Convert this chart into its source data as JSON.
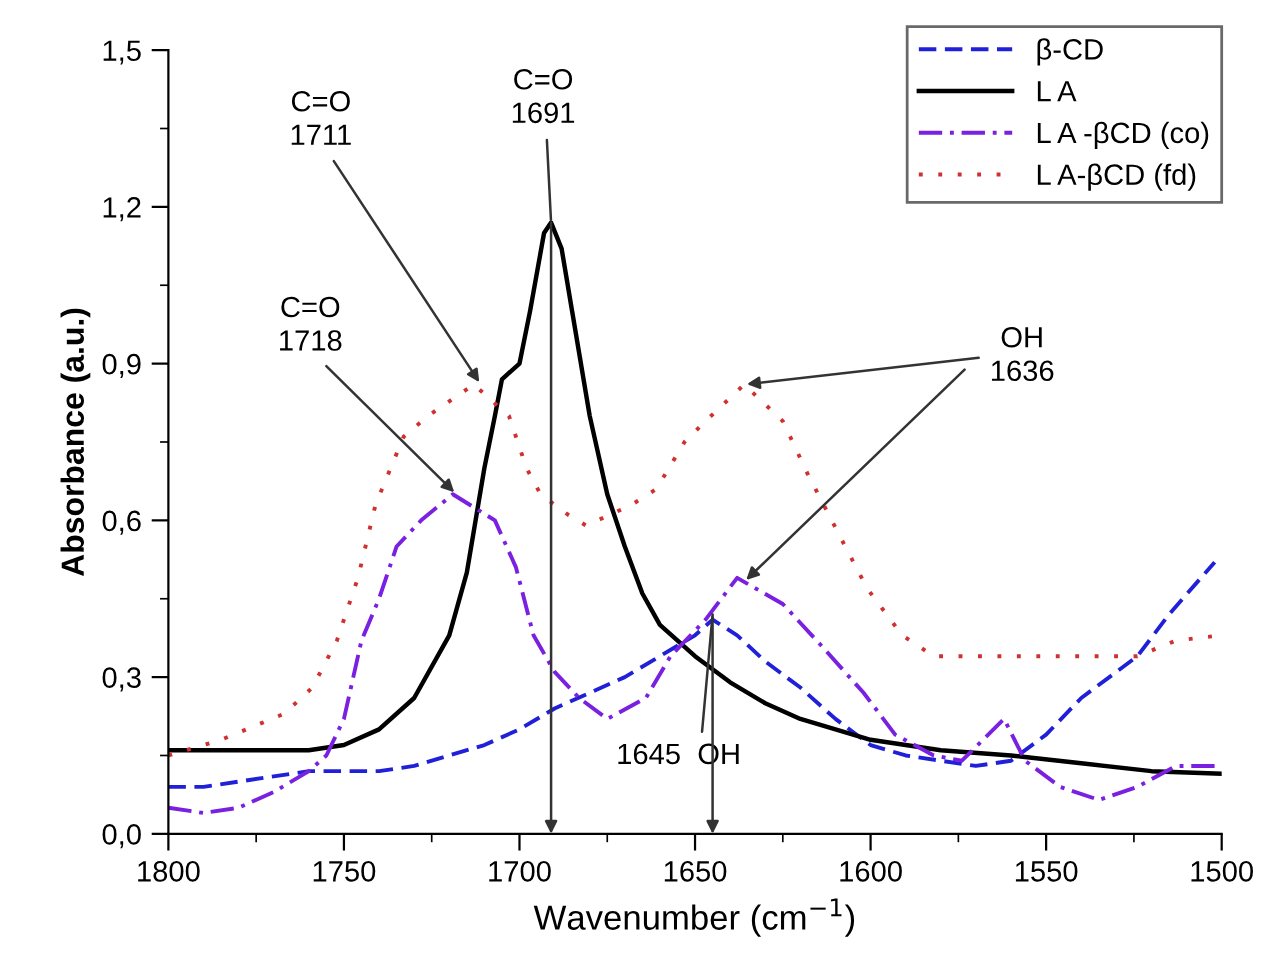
{
  "chart_data": {
    "type": "line",
    "xlabel": "Wavenumber (cm$^{−1}$)",
    "ylabel": "Absorbance (a.u.)",
    "xlim": [
      1800,
      1500
    ],
    "xticks": [
      1800,
      1750,
      1700,
      1650,
      1600,
      1550,
      1500
    ],
    "ylim": [
      0,
      1.5
    ],
    "yticks": [
      {
        "value": 0,
        "label": "0,0"
      },
      {
        "value": 0.3,
        "label": "0,3"
      },
      {
        "value": 0.6,
        "label": "0,6"
      },
      {
        "value": 0.9,
        "label": "0,9"
      },
      {
        "value": 1.2,
        "label": "1,2"
      },
      {
        "value": 1.5,
        "label": "1,5"
      }
    ],
    "grid": false,
    "legend": "top right",
    "marker": "none",
    "series": [
      {
        "name": "β-CD",
        "color": "#2020d8",
        "line_style": "dashed",
        "x": [
          1800,
          1790,
          1780,
          1770,
          1760,
          1750,
          1740,
          1730,
          1720,
          1710,
          1700,
          1690,
          1680,
          1670,
          1660,
          1650,
          1645,
          1638,
          1630,
          1620,
          1610,
          1600,
          1590,
          1580,
          1570,
          1560,
          1550,
          1540,
          1524,
          1515,
          1502
        ],
        "values": [
          0.09,
          0.09,
          0.1,
          0.11,
          0.12,
          0.12,
          0.12,
          0.13,
          0.15,
          0.17,
          0.2,
          0.24,
          0.27,
          0.3,
          0.34,
          0.38,
          0.41,
          0.38,
          0.33,
          0.28,
          0.22,
          0.17,
          0.15,
          0.14,
          0.13,
          0.14,
          0.19,
          0.26,
          0.34,
          0.42,
          0.52
        ]
      },
      {
        "name": "L A",
        "color": "#000000",
        "line_style": "solid",
        "x": [
          1800,
          1780,
          1760,
          1750,
          1740,
          1730,
          1720,
          1715,
          1710,
          1707,
          1705,
          1700,
          1697,
          1693,
          1691,
          1688,
          1685,
          1680,
          1675,
          1670,
          1665,
          1660,
          1650,
          1640,
          1630,
          1620,
          1600,
          1580,
          1560,
          1540,
          1520,
          1500
        ],
        "values": [
          0.16,
          0.16,
          0.16,
          0.17,
          0.2,
          0.26,
          0.38,
          0.5,
          0.7,
          0.8,
          0.87,
          0.9,
          1.0,
          1.15,
          1.17,
          1.12,
          1.0,
          0.8,
          0.65,
          0.55,
          0.46,
          0.4,
          0.34,
          0.29,
          0.25,
          0.22,
          0.18,
          0.16,
          0.15,
          0.135,
          0.12,
          0.115
        ]
      },
      {
        "name": "L A -βCD (co)",
        "color": "#7a20e0",
        "line_style": "dashdot",
        "x": [
          1800,
          1790,
          1780,
          1770,
          1760,
          1755,
          1750,
          1745,
          1740,
          1735,
          1728,
          1719,
          1707,
          1701,
          1696,
          1690,
          1683,
          1675,
          1664,
          1657,
          1647,
          1638,
          1625,
          1614,
          1602,
          1593,
          1582,
          1574,
          1562,
          1556,
          1546,
          1535,
          1524,
          1513,
          1500
        ],
        "values": [
          0.05,
          0.04,
          0.05,
          0.08,
          0.12,
          0.15,
          0.22,
          0.37,
          0.45,
          0.55,
          0.6,
          0.65,
          0.6,
          0.51,
          0.38,
          0.31,
          0.26,
          0.22,
          0.26,
          0.34,
          0.41,
          0.49,
          0.44,
          0.36,
          0.27,
          0.19,
          0.15,
          0.14,
          0.22,
          0.14,
          0.09,
          0.065,
          0.09,
          0.13,
          0.13
        ]
      },
      {
        "name": "L A-βCD (fd)",
        "color": "#d03030",
        "line_style": "dotted",
        "x": [
          1800,
          1785,
          1767,
          1759,
          1752,
          1746,
          1741,
          1733,
          1726,
          1713,
          1703,
          1698,
          1694,
          1686,
          1681,
          1668,
          1661,
          1653,
          1647,
          1636,
          1625,
          1618,
          1608,
          1601,
          1591,
          1582,
          1560,
          1524,
          1513,
          1500
        ],
        "values": [
          0.15,
          0.18,
          0.23,
          0.28,
          0.37,
          0.49,
          0.63,
          0.76,
          0.8,
          0.86,
          0.8,
          0.7,
          0.65,
          0.61,
          0.59,
          0.63,
          0.66,
          0.75,
          0.79,
          0.86,
          0.79,
          0.69,
          0.56,
          0.47,
          0.38,
          0.34,
          0.34,
          0.34,
          0.37,
          0.38
        ]
      }
    ],
    "annotations": [
      {
        "text": "C=O\n1711",
        "x": 1711,
        "y": 0.86
      },
      {
        "text": "C=O\n1718",
        "x": 1718,
        "y": 0.65
      },
      {
        "text": "C=O\n1691",
        "x": 1691,
        "y": 1.17
      },
      {
        "text": "1645  OH",
        "x": 1645,
        "y": 0.42
      },
      {
        "text": "OH\n1636",
        "x": 1636,
        "y": 0.86
      }
    ]
  }
}
